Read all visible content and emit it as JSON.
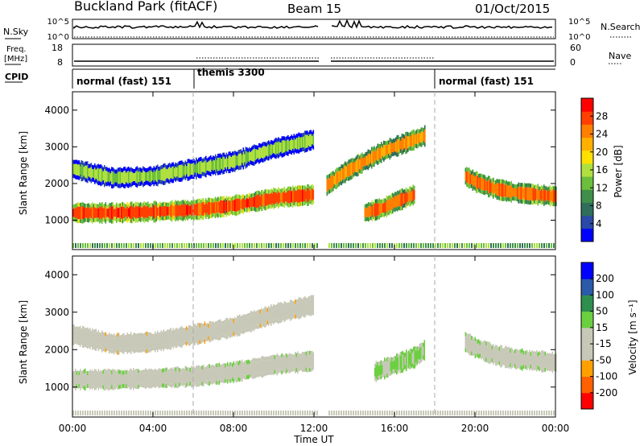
{
  "header": {
    "station": "Buckland Park (fitACF)",
    "beam_label": "Beam",
    "beam_number": "15",
    "date": "01/Oct/2015"
  },
  "aux_panels": {
    "nsky": {
      "label": "N.Sky",
      "left_ticks": [
        "10^5",
        "10^0"
      ],
      "right_ticks": [
        "10^5",
        "10^0"
      ],
      "right_label": "N.Search"
    },
    "freq": {
      "label_line1": "Freq.",
      "label_line2": "[MHz]",
      "left_ticks": [
        "18",
        "8"
      ],
      "right_ticks": [
        "60",
        "0"
      ],
      "right_label": "Nave"
    },
    "cpid": {
      "label": "CPID",
      "segments": [
        {
          "text": "normal (fast) 151",
          "start_h": 0
        },
        {
          "text": "themis 3300",
          "start_h": 6
        },
        {
          "text": "normal (fast) 151",
          "start_h": 18
        }
      ]
    }
  },
  "colors": {
    "power": [
      "#0000ff",
      "#2a4aa8",
      "#2e6e5a",
      "#3f8f4a",
      "#6bbf3c",
      "#b0e040",
      "#ffe000",
      "#ffb000",
      "#ff8000",
      "#ff4000",
      "#ff0000"
    ],
    "velocity": [
      "#ff0000",
      "#ff6000",
      "#ffa000",
      "#c8c8b8",
      "#c8c8b8",
      "#6bd040",
      "#2e8e4e",
      "#2a5aa8",
      "#0000ff"
    ]
  },
  "chart_data": [
    {
      "type": "heatmap",
      "name": "power",
      "ylabel": "Slant Range [km]",
      "y_ticks": [
        "1000",
        "2000",
        "3000",
        "4000"
      ],
      "ylim": [
        200,
        4500
      ],
      "xlim": [
        0,
        24
      ],
      "colorbar": {
        "label": "Power [dB]",
        "ticks": [
          "28",
          "24",
          "20",
          "16",
          "12",
          "8",
          "4"
        ],
        "range": [
          0,
          30
        ]
      },
      "echo_bands": [
        {
          "t": [
            0.0,
            2.0,
            4.0,
            6.0,
            8.0,
            10.0,
            12.0
          ],
          "range_km": [
            1200,
            1200,
            1230,
            1280,
            1400,
            1600,
            1700
          ],
          "value_db": 27
        },
        {
          "t": [
            0.0,
            2.0,
            4.0,
            6.0,
            8.0,
            10.0,
            12.0
          ],
          "range_km": [
            2400,
            2150,
            2200,
            2400,
            2600,
            2950,
            3200
          ],
          "value_db": 14
        },
        {
          "t": [
            12.5,
            13.5,
            14.5,
            15.5,
            16.5,
            17.5
          ],
          "range_km": [
            1900,
            2300,
            2600,
            2900,
            3100,
            3300
          ],
          "value_db": 23
        },
        {
          "t": [
            14.5,
            15.5,
            16.0,
            16.5,
            17.0
          ],
          "range_km": [
            1200,
            1350,
            1500,
            1600,
            1700
          ],
          "value_db": 25
        },
        {
          "t": [
            19.5,
            20.0,
            21.0,
            22.0,
            23.0,
            24.0
          ],
          "range_km": [
            2200,
            2050,
            1850,
            1750,
            1700,
            1650
          ],
          "value_db": 25
        }
      ]
    },
    {
      "type": "heatmap",
      "name": "velocity",
      "xlabel": "Time UT",
      "ylabel": "Slant Range [km]",
      "x_ticks": [
        "00:00",
        "04:00",
        "08:00",
        "12:00",
        "16:00",
        "20:00",
        "00:00"
      ],
      "y_ticks": [
        "1000",
        "2000",
        "3000",
        "4000"
      ],
      "ylim": [
        200,
        4500
      ],
      "xlim": [
        0,
        24
      ],
      "colorbar": {
        "label": "Velocity [m s⁻¹]",
        "ticks": [
          "200",
          "100",
          "50",
          "15",
          "-15",
          "-50",
          "-100",
          "-200"
        ],
        "range": [
          -250,
          250
        ]
      },
      "echo_bands": [
        {
          "t": [
            0.0,
            2.0,
            4.0,
            6.0,
            8.0,
            10.0,
            12.0
          ],
          "range_km": [
            1200,
            1200,
            1230,
            1280,
            1400,
            1600,
            1700
          ],
          "value_ms": 0
        },
        {
          "t": [
            0.0,
            2.0,
            4.0,
            6.0,
            8.0,
            10.0,
            12.0
          ],
          "range_km": [
            2400,
            2150,
            2200,
            2400,
            2600,
            2950,
            3200
          ],
          "value_ms": -40
        },
        {
          "t": [
            15.0,
            16.0,
            17.0,
            17.5
          ],
          "range_km": [
            1400,
            1600,
            1800,
            2000
          ],
          "value_ms": 35
        },
        {
          "t": [
            19.5,
            20.0,
            21.0,
            22.0,
            23.0,
            24.0
          ],
          "range_km": [
            2200,
            2050,
            1850,
            1750,
            1700,
            1650
          ],
          "value_ms": 0
        }
      ]
    }
  ]
}
